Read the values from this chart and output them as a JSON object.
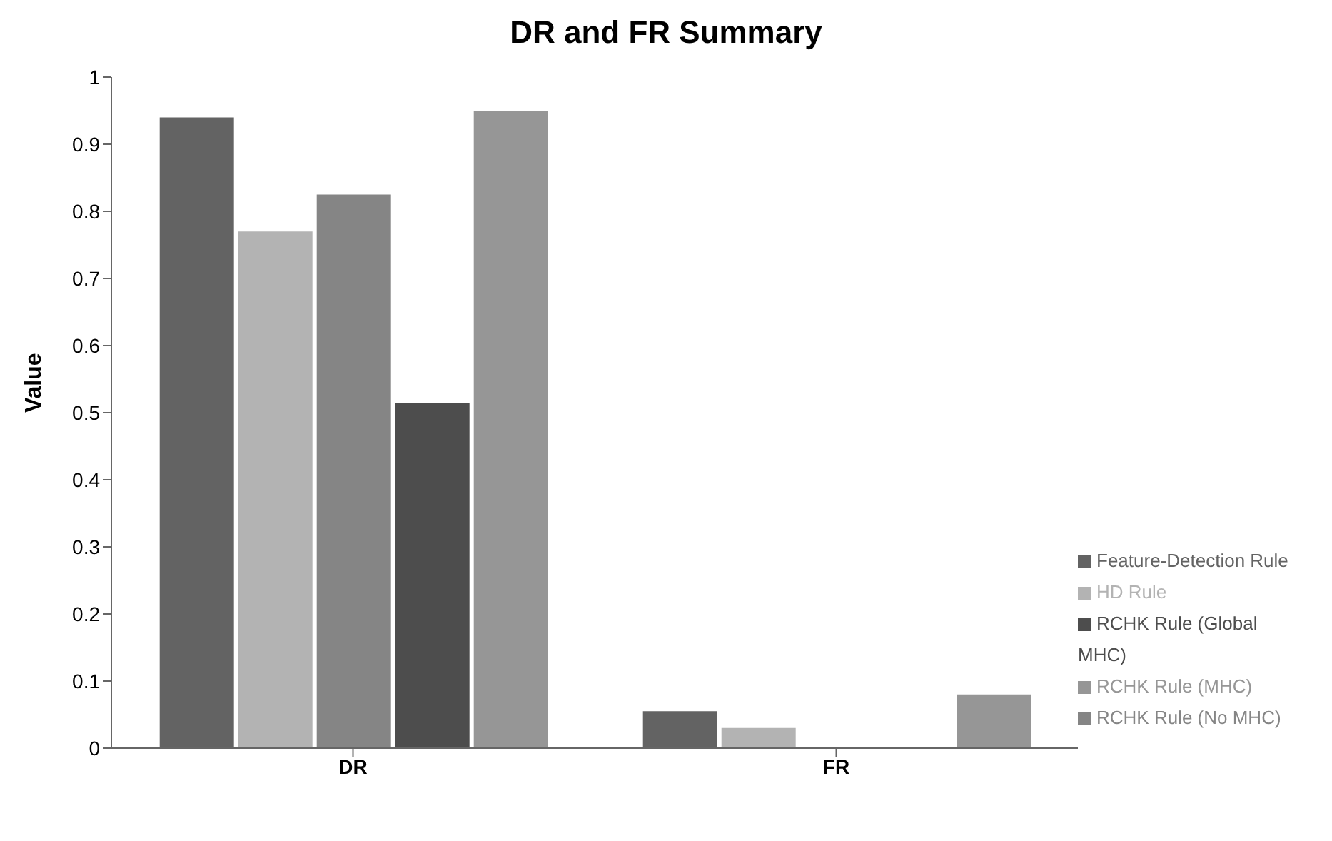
{
  "chart_data": {
    "type": "bar",
    "title": "DR and FR Summary",
    "ylabel": "Value",
    "categories": [
      "DR",
      "FR"
    ],
    "series": [
      {
        "name": "Feature-Detection Rule",
        "color": "#636363",
        "values": [
          0.94,
          0.055
        ]
      },
      {
        "name": "HD Rule",
        "color": "#b3b3b3",
        "values": [
          0.77,
          0.03
        ]
      },
      {
        "name": "RCHK Rule (No MHC)",
        "color": "#858585",
        "values": [
          0.825,
          0
        ]
      },
      {
        "name": "RCHK Rule (Global MHC)",
        "color": "#4d4d4d",
        "values": [
          0.515,
          0
        ]
      },
      {
        "name": "RCHK Rule (MHC)",
        "color": "#969696",
        "values": [
          0.95,
          0.08
        ]
      }
    ],
    "ylim": [
      0,
      1
    ],
    "yticks": [
      0,
      0.1,
      0.2,
      0.3,
      0.4,
      0.5,
      0.6,
      0.7,
      0.8,
      0.9,
      1
    ],
    "grid": false,
    "legend": "bottom right"
  }
}
